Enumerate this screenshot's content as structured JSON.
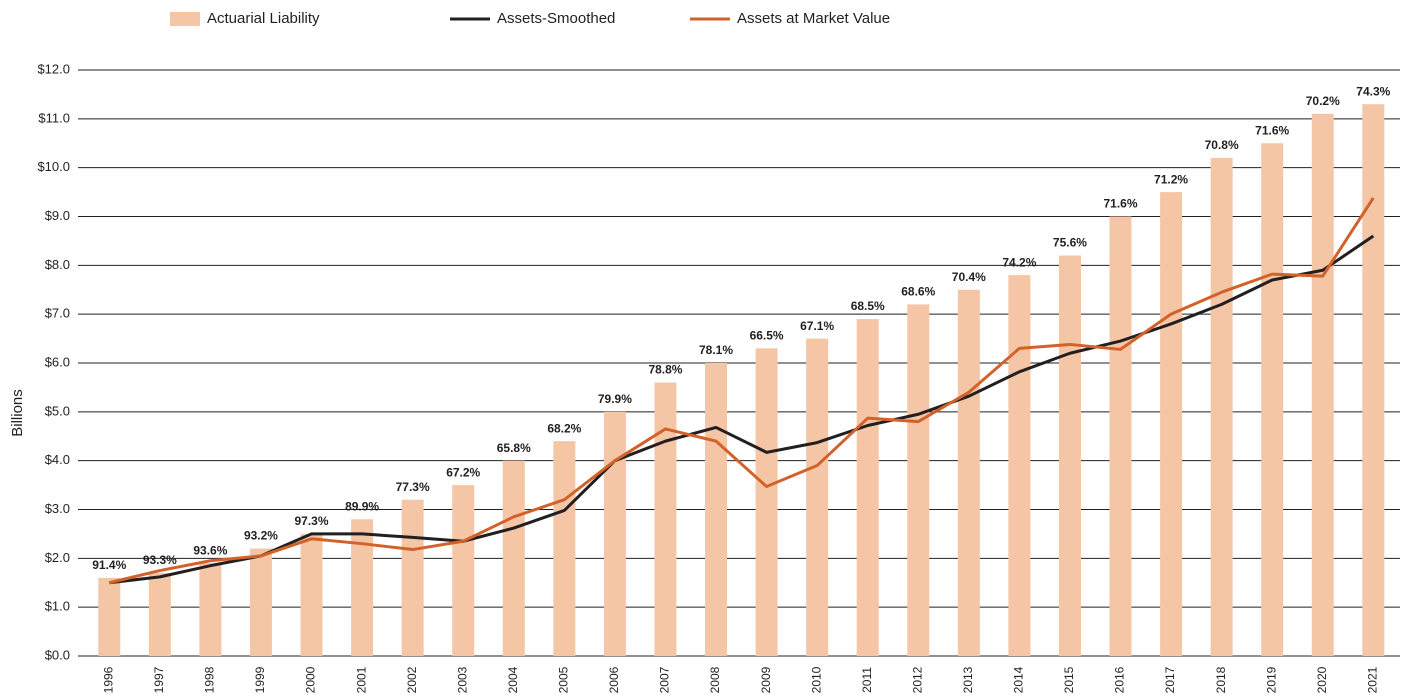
{
  "chart_data": {
    "type": "bar_line",
    "y_label": "Billions",
    "categories": [
      "1996",
      "1997",
      "1998",
      "1999",
      "2000",
      "2001",
      "2002",
      "2003",
      "2004",
      "2005",
      "2006",
      "2007",
      "2008",
      "2009",
      "2010",
      "2011",
      "2012",
      "2013",
      "2014",
      "2015",
      "2016",
      "2017",
      "2018",
      "2019",
      "2020",
      "2021"
    ],
    "series": [
      {
        "name": "Actuarial Liability",
        "type": "bar",
        "color": "#f5c6a5",
        "values": [
          1.6,
          1.7,
          1.9,
          2.2,
          2.5,
          2.8,
          3.2,
          3.5,
          4.0,
          4.4,
          5.0,
          5.6,
          6.0,
          6.3,
          6.5,
          6.9,
          7.2,
          7.5,
          7.8,
          8.2,
          9.0,
          9.5,
          10.2,
          10.5,
          11.1,
          11.3
        ],
        "value_labels": null
      },
      {
        "name": "Assets-Smoothed",
        "type": "line",
        "color": "#231f20",
        "values": [
          1.5,
          1.62,
          1.85,
          2.05,
          2.5,
          2.5,
          2.43,
          2.35,
          2.62,
          2.98,
          4.0,
          4.4,
          4.68,
          4.17,
          4.37,
          4.72,
          4.95,
          5.32,
          5.82,
          6.2,
          6.45,
          6.8,
          7.2,
          7.7,
          7.9,
          8.6
        ]
      },
      {
        "name": "Assets at Market Value",
        "type": "line",
        "color": "#d2622a",
        "values": [
          1.5,
          1.75,
          1.95,
          2.05,
          2.4,
          2.3,
          2.18,
          2.35,
          2.85,
          3.2,
          4.0,
          4.65,
          4.4,
          3.47,
          3.9,
          4.87,
          4.8,
          5.4,
          6.3,
          6.38,
          6.28,
          7.0,
          7.45,
          7.82,
          7.78,
          9.38
        ]
      }
    ],
    "bar_annotations": [
      "91.4%",
      "93.3%",
      "93.6%",
      "93.2%",
      "97.3%",
      "89.9%",
      "77.3%",
      "67.2%",
      "65.8%",
      "68.2%",
      "79.9%",
      "78.8%",
      "78.1%",
      "66.5%",
      "67.1%",
      "68.5%",
      "68.6%",
      "70.4%",
      "74.2%",
      "75.6%",
      "71.6%",
      "71.2%",
      "70.8%",
      "71.6%",
      "70.2%",
      "74.3%"
    ],
    "ylim": [
      0,
      12
    ],
    "yticks": [
      {
        "value": 0,
        "label": "$0.0"
      },
      {
        "value": 1,
        "label": "$1.0"
      },
      {
        "value": 2,
        "label": "$2.0"
      },
      {
        "value": 3,
        "label": "$3.0"
      },
      {
        "value": 4,
        "label": "$4.0"
      },
      {
        "value": 5,
        "label": "$5.0"
      },
      {
        "value": 6,
        "label": "$6.0"
      },
      {
        "value": 7,
        "label": "$7.0"
      },
      {
        "value": 8,
        "label": "$8.0"
      },
      {
        "value": 9,
        "label": "$9.0"
      },
      {
        "value": 10,
        "label": "$10.0"
      },
      {
        "value": 11,
        "label": "$11.0"
      },
      {
        "value": 12,
        "label": "$12.0"
      }
    ],
    "grid": true,
    "legend": "top"
  }
}
